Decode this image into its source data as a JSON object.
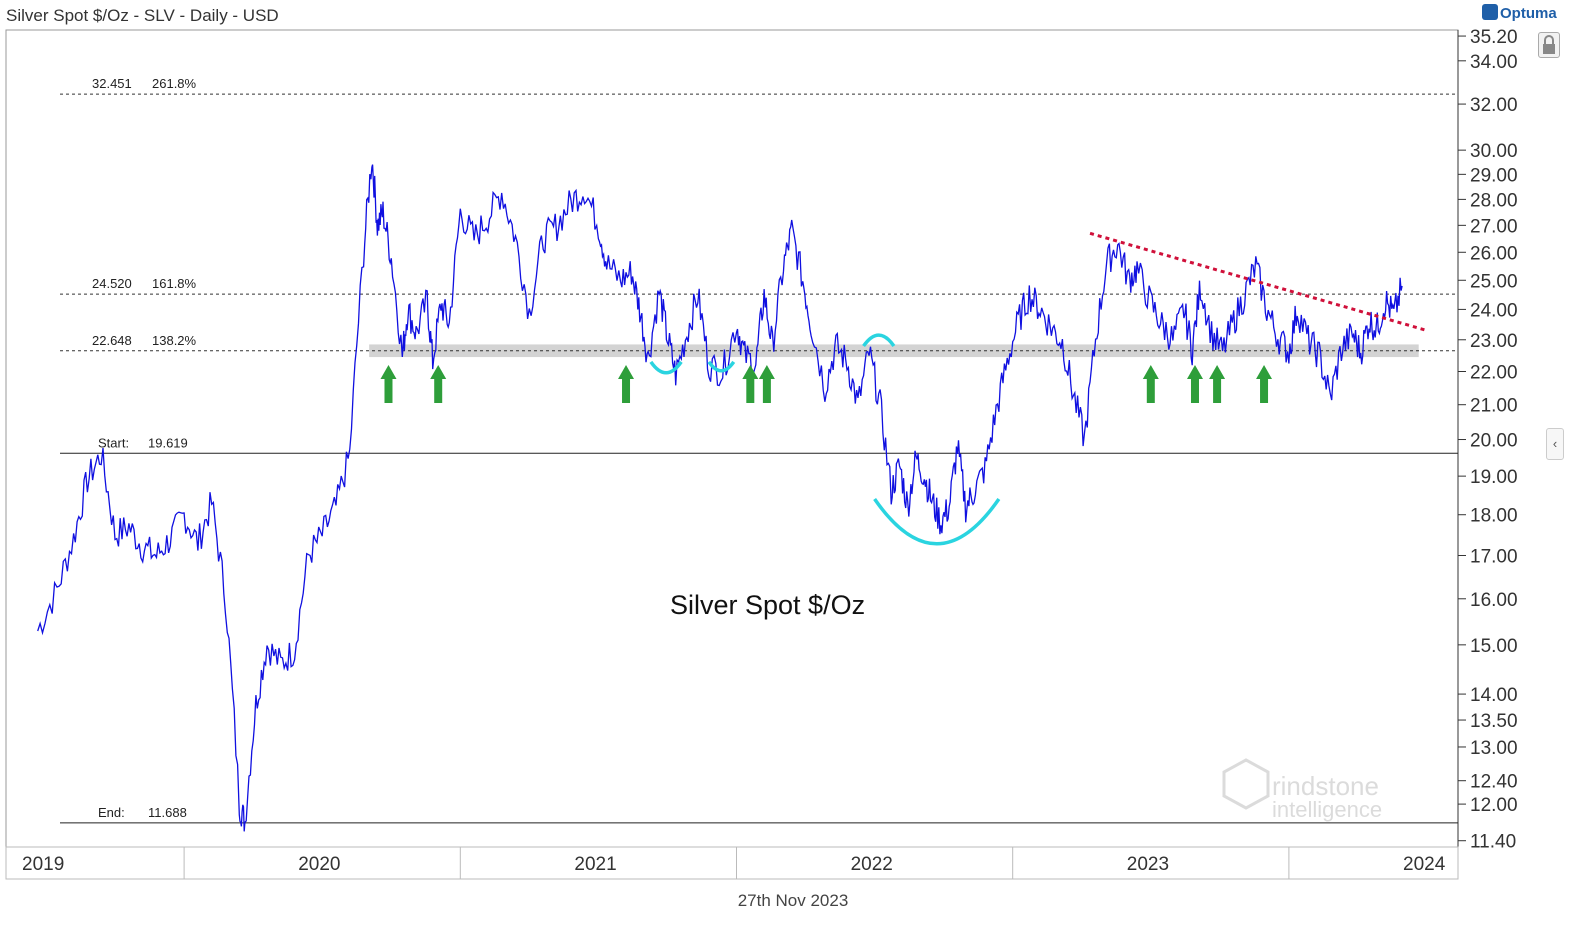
{
  "header": {
    "title": "Silver Spot $/Oz - SLV - Daily - USD",
    "brand": "Optuma"
  },
  "footer": {
    "date": "27th Nov 2023"
  },
  "watermark": {
    "line1": "rindstone",
    "line2": "intelligence"
  },
  "colors": {
    "price": "#1010e0",
    "support_band": "#c8c8c8",
    "arrow": "#2e9e3a",
    "curve": "#2ad4e0",
    "trendline": "#d0103a",
    "axis": "#333333"
  },
  "icons": {
    "lock": "lock-icon",
    "collapse": "chevron-left-icon",
    "brand": "optuma-logo-icon"
  },
  "chart_data": {
    "type": "line",
    "title": "Silver Spot $/Oz",
    "y_scale": "log",
    "ylim": [
      11.3,
      35.5
    ],
    "xlim": [
      2019.0,
      2024.0
    ],
    "y_ticks": [
      35.2,
      34.0,
      32.0,
      30.0,
      29.0,
      28.0,
      27.0,
      26.0,
      25.0,
      24.0,
      23.0,
      22.0,
      21.0,
      20.0,
      19.0,
      18.0,
      17.0,
      16.0,
      15.0,
      14.0,
      13.5,
      13.0,
      12.4,
      12.0,
      11.4
    ],
    "x_ticks": [
      {
        "label": "2019",
        "x": 2019.0
      },
      {
        "label": "2020",
        "x": 2020.0
      },
      {
        "label": "2021",
        "x": 2021.0
      },
      {
        "label": "2022",
        "x": 2022.0
      },
      {
        "label": "2023",
        "x": 2023.0
      },
      {
        "label": "2024",
        "x": 2024.0
      }
    ],
    "levels": [
      {
        "label": "32.451",
        "pct": "261.8%",
        "value": 32.451,
        "style": "dotted"
      },
      {
        "label": "24.520",
        "pct": "161.8%",
        "value": 24.52,
        "style": "dotted"
      },
      {
        "label": "22.648",
        "pct": "138.2%",
        "value": 22.648,
        "style": "dotted"
      },
      {
        "label": "Start:",
        "pct": "19.619",
        "value": 19.619,
        "style": "solid"
      },
      {
        "label": "End:",
        "pct": "11.688",
        "value": 11.688,
        "style": "solid"
      }
    ],
    "support_band": [
      22.45,
      22.85
    ],
    "series": [
      {
        "x": [
          2018.97,
          2019.04,
          2019.1,
          2019.15,
          2019.2,
          2019.25,
          2019.3,
          2019.35,
          2019.4,
          2019.45,
          2019.5,
          2019.55,
          2019.6,
          2019.65,
          2019.7,
          2019.72,
          2019.76,
          2019.8,
          2019.85,
          2019.9,
          2019.95,
          2020.0,
          2020.05,
          2020.1,
          2020.15,
          2020.18,
          2020.2,
          2020.22,
          2020.25,
          2020.29,
          2020.31,
          2020.34,
          2020.38,
          2020.4,
          2020.43,
          2020.46,
          2020.5,
          2020.55,
          2020.6,
          2020.65,
          2020.7,
          2020.75,
          2020.8,
          2020.85,
          2020.9,
          2020.95,
          2021.0,
          2021.03,
          2021.08,
          2021.12,
          2021.15,
          2021.18,
          2021.22,
          2021.25,
          2021.28,
          2021.32,
          2021.36,
          2021.4,
          2021.45,
          2021.5,
          2021.53,
          2021.57,
          2021.6,
          2021.63,
          2021.67,
          2021.7,
          2021.74,
          2021.77,
          2021.82,
          2021.86,
          2021.9,
          2021.94,
          2021.98,
          2022.02,
          2022.06,
          2022.09,
          2022.12,
          2022.15,
          2022.18,
          2022.21,
          2022.24,
          2022.27,
          2022.3,
          2022.33,
          2022.36,
          2022.4,
          2022.44,
          2022.48,
          2022.52,
          2022.56,
          2022.6,
          2022.64,
          2022.68,
          2022.72,
          2022.76,
          2022.8,
          2022.84,
          2022.88,
          2022.92,
          2022.95,
          2023.0,
          2023.04,
          2023.08,
          2023.12,
          2023.15,
          2023.18,
          2023.22,
          2023.26,
          2023.3,
          2023.34,
          2023.38,
          2023.42,
          2023.46,
          2023.5,
          2023.53,
          2023.57,
          2023.61,
          2023.65,
          2023.69,
          2023.73,
          2023.76,
          2023.79,
          2023.82,
          2023.85,
          2023.88,
          2023.91
        ],
        "values": [
          15.3,
          16.2,
          17.4,
          18.9,
          19.6,
          17.5,
          17.7,
          17.2,
          17.0,
          17.4,
          18.0,
          17.3,
          18.3,
          16.0,
          12.0,
          11.7,
          13.8,
          15.0,
          14.6,
          14.9,
          17.0,
          17.5,
          18.2,
          19.6,
          26.0,
          29.7,
          27.0,
          27.5,
          25.8,
          22.5,
          24.0,
          23.2,
          24.3,
          22.3,
          24.2,
          23.5,
          27.5,
          26.5,
          27.3,
          28.3,
          26.5,
          23.9,
          26.5,
          27.0,
          27.9,
          28.4,
          27.0,
          25.6,
          25.0,
          25.3,
          24.0,
          22.4,
          24.6,
          23.1,
          21.9,
          23.2,
          24.5,
          22.2,
          22.0,
          23.5,
          22.5,
          22.2,
          24.5,
          22.8,
          25.5,
          26.8,
          25.0,
          23.5,
          21.5,
          22.8,
          22.3,
          21.0,
          22.6,
          21.0,
          18.6,
          19.3,
          18.2,
          19.5,
          19.0,
          18.3,
          17.8,
          18.2,
          19.8,
          18.2,
          18.6,
          19.2,
          20.8,
          22.3,
          23.6,
          24.5,
          24.0,
          23.4,
          22.9,
          21.3,
          20.0,
          23.0,
          25.6,
          26.3,
          25.0,
          25.4,
          24.2,
          23.5,
          23.0,
          24.0,
          22.7,
          24.8,
          23.2,
          22.6,
          23.6,
          24.5,
          25.5,
          24.0,
          23.1,
          22.6,
          24.0,
          23.0,
          22.5,
          21.2,
          22.7,
          23.2,
          22.6,
          23.6,
          23.4,
          24.3,
          23.8,
          24.8
        ]
      }
    ],
    "arrows_up_at": [
      2020.24,
      2020.42,
      2021.1,
      2021.55,
      2021.61,
      2023.0,
      2023.16,
      2023.24,
      2023.41
    ],
    "support_curves": [
      {
        "type": "cup",
        "x_from": 2021.19,
        "x_to": 2021.3,
        "y": 22.3
      },
      {
        "type": "cup",
        "x_from": 2021.4,
        "x_to": 2021.49,
        "y": 22.3
      },
      {
        "type": "cap",
        "x_from": 2021.96,
        "x_to": 2022.07,
        "y": 22.8
      },
      {
        "type": "cup",
        "x_from": 2022.0,
        "x_to": 2022.45,
        "y": 18.4
      }
    ],
    "trendline": {
      "x": [
        2022.78,
        2024.0
      ],
      "y": [
        26.7,
        23.3
      ]
    },
    "annotation": "Silver Spot $/Oz"
  }
}
